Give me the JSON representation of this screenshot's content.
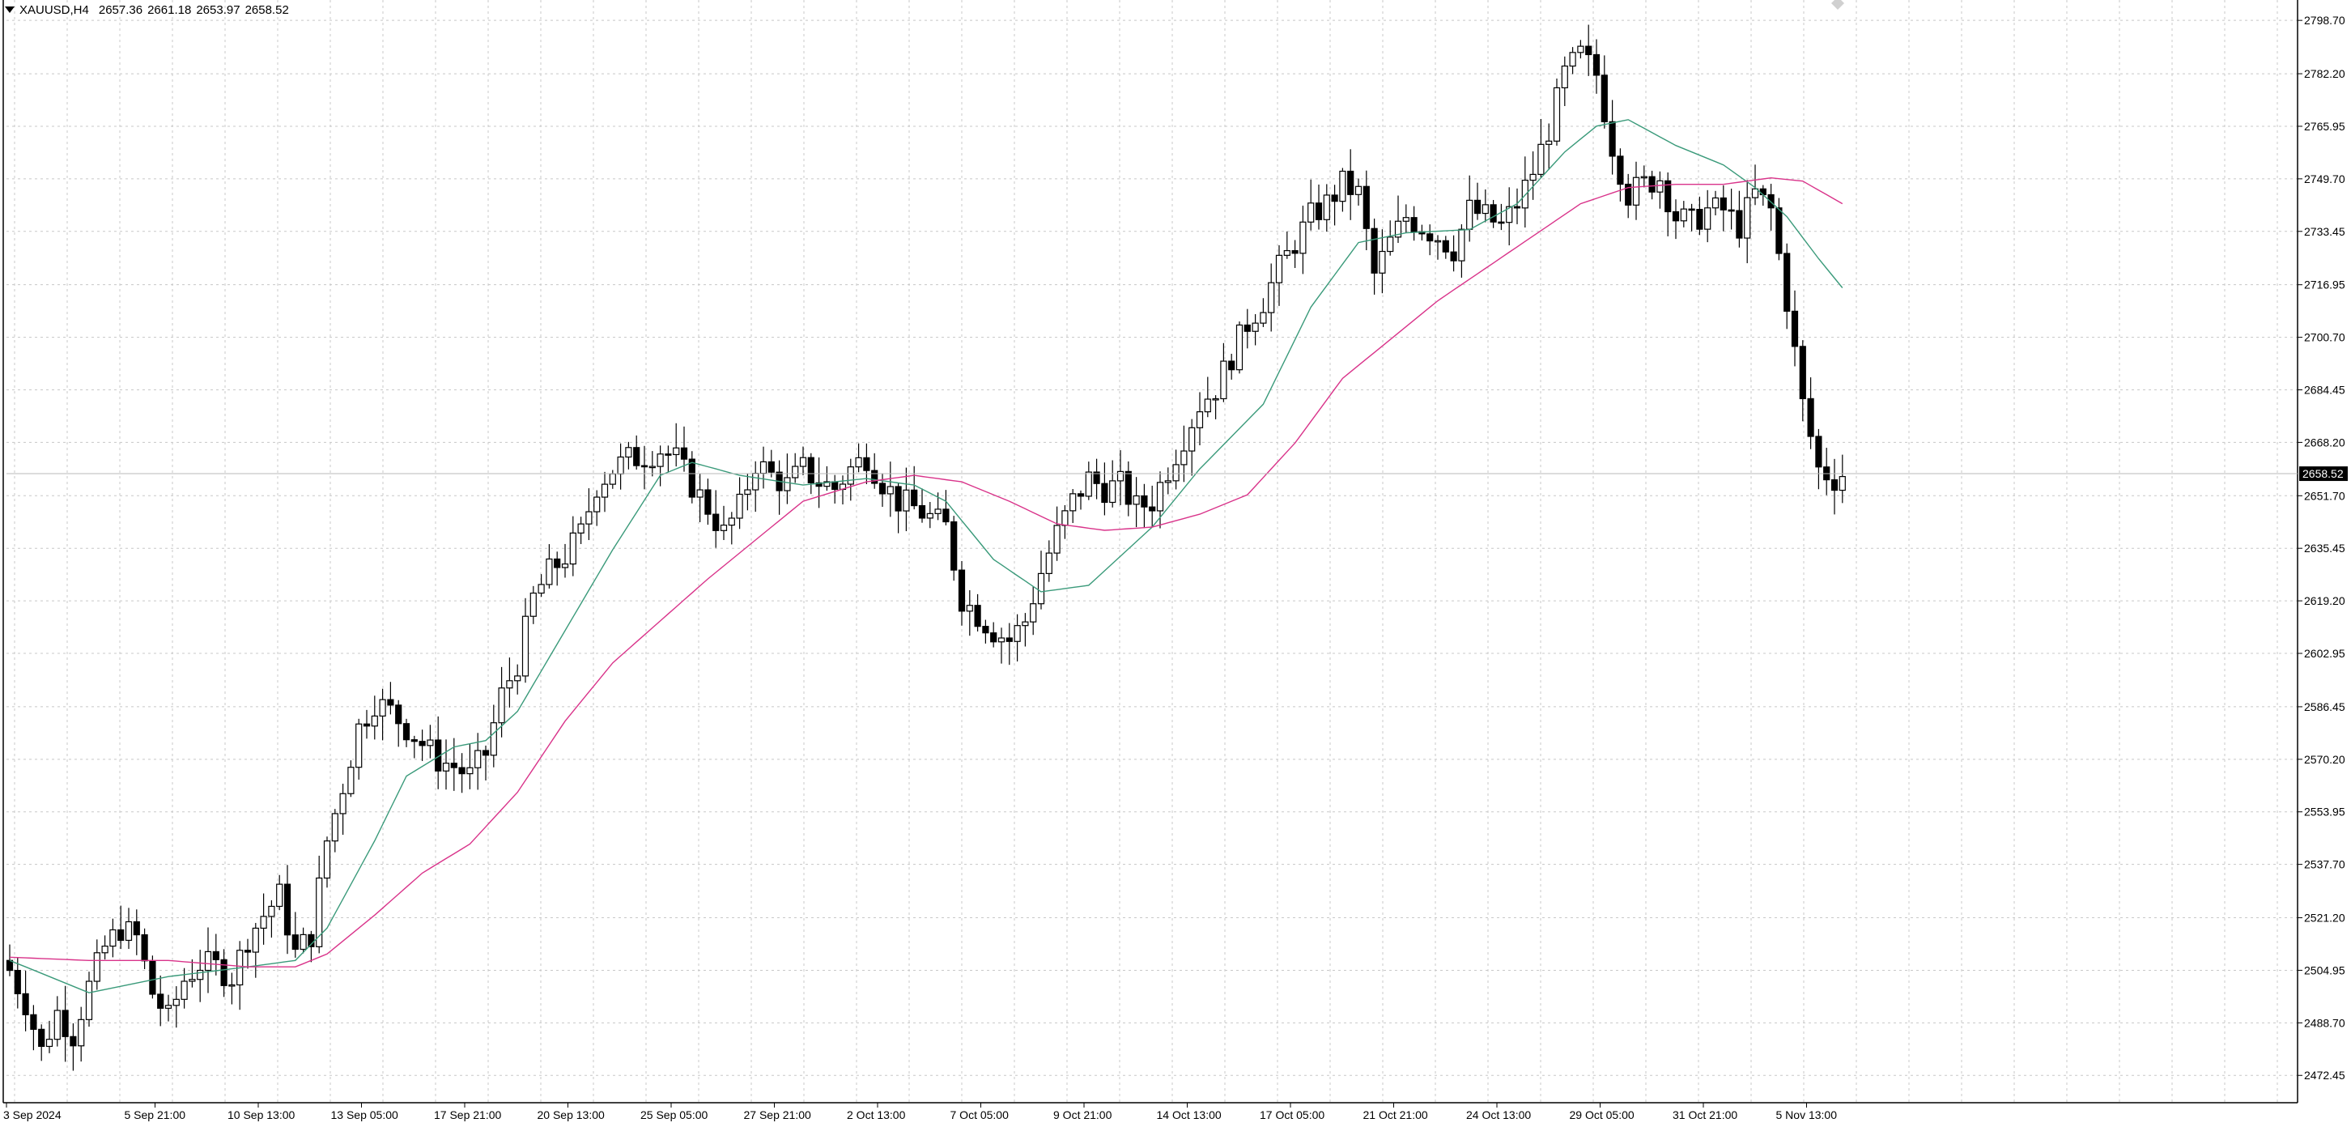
{
  "header": {
    "symbol": "XAUUSD,H4",
    "open": "2657.36",
    "high": "2661.18",
    "low": "2653.97",
    "close": "2658.52"
  },
  "icons": {
    "collapse": "triangle-down-icon",
    "corner": "diamond-icon"
  },
  "colors": {
    "background": "#ffffff",
    "grid": "#c8c8c8",
    "candle": "#000000",
    "ma_fast": "#3a9a7a",
    "ma_slow": "#d9338a",
    "price_label_bg": "#000000",
    "price_label_text": "#ffffff"
  },
  "chart_data": {
    "type": "candlestick",
    "ylim": [
      2464,
      2805
    ],
    "y_ticks": [
      "2798.70",
      "2782.20",
      "2765.95",
      "2749.70",
      "2733.45",
      "2716.95",
      "2700.70",
      "2684.45",
      "2668.20",
      "2651.70",
      "2635.45",
      "2619.20",
      "2602.95",
      "2586.45",
      "2570.20",
      "2553.95",
      "2537.70",
      "2521.20",
      "2504.95",
      "2488.70",
      "2472.45"
    ],
    "x_labels": [
      "3 Sep 2024",
      "5 Sep 21:00",
      "10 Sep 13:00",
      "13 Sep 05:00",
      "17 Sep 21:00",
      "20 Sep 13:00",
      "25 Sep 05:00",
      "27 Sep 21:00",
      "2 Oct 13:00",
      "7 Oct 05:00",
      "9 Oct 21:00",
      "14 Oct 13:00",
      "17 Oct 05:00",
      "21 Oct 21:00",
      "24 Oct 13:00",
      "29 Oct 05:00",
      "31 Oct 21:00",
      "5 Nov 13:00"
    ],
    "current_price": "2658.52",
    "close_path": [
      [
        0,
        2505
      ],
      [
        2,
        2495
      ],
      [
        4,
        2480
      ],
      [
        6,
        2492
      ],
      [
        8,
        2485
      ],
      [
        10,
        2500
      ],
      [
        12,
        2512
      ],
      [
        14,
        2518
      ],
      [
        16,
        2515
      ],
      [
        18,
        2498
      ],
      [
        20,
        2490
      ],
      [
        22,
        2502
      ],
      [
        24,
        2507
      ],
      [
        26,
        2506
      ],
      [
        28,
        2503
      ],
      [
        30,
        2515
      ],
      [
        32,
        2522
      ],
      [
        34,
        2528
      ],
      [
        36,
        2510
      ],
      [
        38,
        2516
      ],
      [
        40,
        2545
      ],
      [
        42,
        2562
      ],
      [
        44,
        2580
      ],
      [
        46,
        2588
      ],
      [
        48,
        2585
      ],
      [
        50,
        2580
      ],
      [
        52,
        2575
      ],
      [
        54,
        2570
      ],
      [
        56,
        2568
      ],
      [
        58,
        2565
      ],
      [
        60,
        2572
      ],
      [
        62,
        2590
      ],
      [
        64,
        2600
      ],
      [
        66,
        2620
      ],
      [
        68,
        2628
      ],
      [
        70,
        2633
      ],
      [
        72,
        2640
      ],
      [
        74,
        2655
      ],
      [
        76,
        2660
      ],
      [
        78,
        2663
      ],
      [
        80,
        2664
      ],
      [
        82,
        2666
      ],
      [
        84,
        2663
      ],
      [
        86,
        2655
      ],
      [
        88,
        2648
      ],
      [
        90,
        2640
      ],
      [
        92,
        2648
      ],
      [
        94,
        2662
      ],
      [
        96,
        2658
      ],
      [
        98,
        2655
      ],
      [
        100,
        2660
      ],
      [
        102,
        2656
      ],
      [
        104,
        2654
      ],
      [
        106,
        2660
      ],
      [
        108,
        2664
      ],
      [
        110,
        2656
      ],
      [
        112,
        2650
      ],
      [
        114,
        2648
      ],
      [
        116,
        2645
      ],
      [
        118,
        2642
      ],
      [
        120,
        2620
      ],
      [
        122,
        2615
      ],
      [
        124,
        2610
      ],
      [
        126,
        2607
      ],
      [
        128,
        2613
      ],
      [
        130,
        2628
      ],
      [
        132,
        2640
      ],
      [
        134,
        2650
      ],
      [
        136,
        2657
      ],
      [
        138,
        2654
      ],
      [
        140,
        2655
      ],
      [
        142,
        2648
      ],
      [
        144,
        2650
      ],
      [
        146,
        2660
      ],
      [
        148,
        2670
      ],
      [
        150,
        2680
      ],
      [
        152,
        2685
      ],
      [
        154,
        2695
      ],
      [
        156,
        2705
      ],
      [
        158,
        2712
      ],
      [
        160,
        2722
      ],
      [
        162,
        2730
      ],
      [
        164,
        2738
      ],
      [
        166,
        2742
      ],
      [
        168,
        2748
      ],
      [
        170,
        2745
      ],
      [
        172,
        2720
      ],
      [
        174,
        2730
      ],
      [
        176,
        2738
      ],
      [
        178,
        2735
      ],
      [
        180,
        2732
      ],
      [
        182,
        2728
      ],
      [
        184,
        2740
      ],
      [
        186,
        2738
      ],
      [
        188,
        2735
      ],
      [
        190,
        2742
      ],
      [
        192,
        2752
      ],
      [
        194,
        2765
      ],
      [
        196,
        2782
      ],
      [
        198,
        2788
      ],
      [
        200,
        2782
      ],
      [
        202,
        2760
      ],
      [
        204,
        2745
      ],
      [
        206,
        2748
      ],
      [
        208,
        2750
      ],
      [
        210,
        2738
      ],
      [
        212,
        2736
      ],
      [
        214,
        2740
      ],
      [
        216,
        2740
      ],
      [
        218,
        2735
      ],
      [
        220,
        2745
      ],
      [
        222,
        2740
      ],
      [
        224,
        2712
      ],
      [
        226,
        2680
      ],
      [
        228,
        2660
      ],
      [
        230,
        2657
      ],
      [
        231,
        2658.5
      ]
    ],
    "ma_fast_path": [
      [
        0,
        2508
      ],
      [
        10,
        2498
      ],
      [
        20,
        2503
      ],
      [
        30,
        2506
      ],
      [
        36,
        2508
      ],
      [
        40,
        2518
      ],
      [
        46,
        2545
      ],
      [
        50,
        2565
      ],
      [
        56,
        2574
      ],
      [
        60,
        2576
      ],
      [
        64,
        2585
      ],
      [
        70,
        2610
      ],
      [
        76,
        2635
      ],
      [
        82,
        2658
      ],
      [
        86,
        2662
      ],
      [
        92,
        2658
      ],
      [
        100,
        2655
      ],
      [
        108,
        2657
      ],
      [
        114,
        2655
      ],
      [
        118,
        2650
      ],
      [
        124,
        2632
      ],
      [
        130,
        2622
      ],
      [
        136,
        2624
      ],
      [
        144,
        2642
      ],
      [
        150,
        2660
      ],
      [
        158,
        2680
      ],
      [
        164,
        2710
      ],
      [
        170,
        2730
      ],
      [
        176,
        2733
      ],
      [
        184,
        2734
      ],
      [
        190,
        2742
      ],
      [
        196,
        2758
      ],
      [
        200,
        2766
      ],
      [
        204,
        2768
      ],
      [
        210,
        2760
      ],
      [
        216,
        2754
      ],
      [
        220,
        2747
      ],
      [
        224,
        2738
      ],
      [
        228,
        2725
      ],
      [
        231,
        2716
      ]
    ],
    "ma_slow_path": [
      [
        0,
        2509
      ],
      [
        10,
        2508
      ],
      [
        20,
        2508
      ],
      [
        30,
        2506
      ],
      [
        36,
        2506
      ],
      [
        40,
        2510
      ],
      [
        46,
        2522
      ],
      [
        52,
        2535
      ],
      [
        58,
        2544
      ],
      [
        64,
        2560
      ],
      [
        70,
        2582
      ],
      [
        76,
        2600
      ],
      [
        82,
        2613
      ],
      [
        88,
        2626
      ],
      [
        94,
        2638
      ],
      [
        100,
        2650
      ],
      [
        108,
        2656
      ],
      [
        114,
        2658
      ],
      [
        120,
        2656
      ],
      [
        126,
        2650
      ],
      [
        132,
        2643
      ],
      [
        138,
        2641
      ],
      [
        144,
        2642
      ],
      [
        150,
        2646
      ],
      [
        156,
        2652
      ],
      [
        162,
        2668
      ],
      [
        168,
        2688
      ],
      [
        174,
        2700
      ],
      [
        180,
        2712
      ],
      [
        186,
        2722
      ],
      [
        192,
        2732
      ],
      [
        198,
        2742
      ],
      [
        204,
        2747
      ],
      [
        210,
        2748
      ],
      [
        216,
        2748
      ],
      [
        222,
        2750
      ],
      [
        226,
        2749
      ],
      [
        231,
        2742
      ]
    ]
  }
}
